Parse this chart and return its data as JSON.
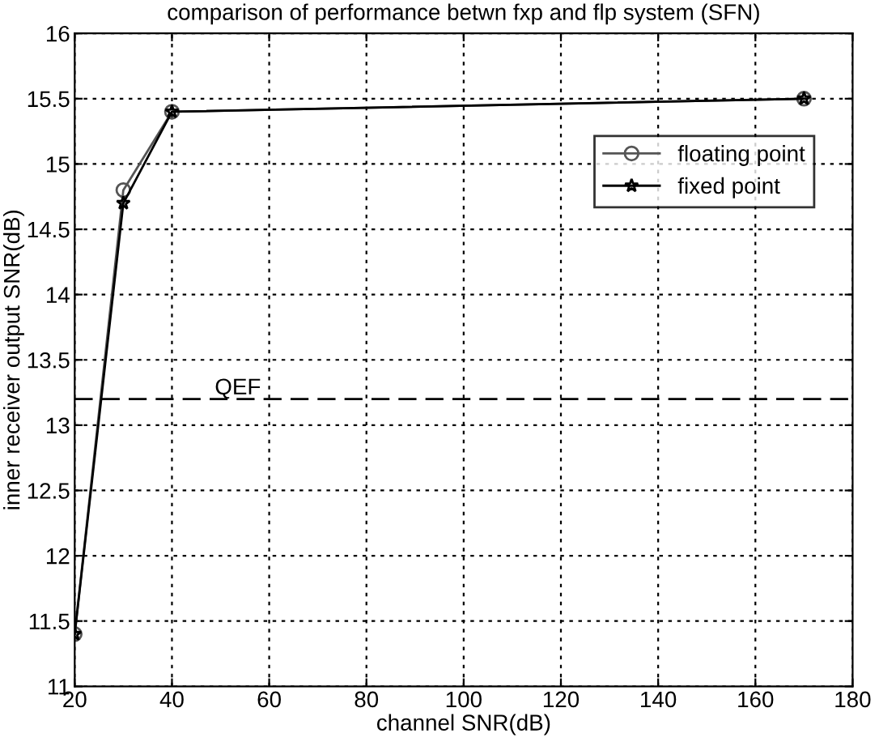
{
  "chart_data": {
    "type": "line",
    "title": "comparison of performance betwn fxp and flp system (SFN)",
    "xlabel": "channel SNR(dB)",
    "ylabel": "inner receiver output SNR(dB)",
    "series": [
      {
        "name": "floating point",
        "color": "#555555",
        "marker": "circle",
        "x": [
          20,
          30,
          40,
          170
        ],
        "values": [
          11.4,
          14.8,
          15.4,
          15.5
        ]
      },
      {
        "name": "fixed point",
        "color": "#000000",
        "marker": "star",
        "x": [
          20,
          30,
          40,
          170
        ],
        "values": [
          11.4,
          14.7,
          15.4,
          15.5
        ]
      }
    ],
    "xlim": [
      20,
      180
    ],
    "xticks": [
      20,
      40,
      60,
      80,
      100,
      120,
      140,
      160,
      180
    ],
    "ylim": [
      11,
      16
    ],
    "yticks": [
      11,
      11.5,
      12,
      12.5,
      13,
      13.5,
      14,
      14.5,
      15,
      15.5,
      16
    ],
    "ref_lines": [
      {
        "axis": "y",
        "value": 13.2,
        "label": "QEF",
        "color": "#000000",
        "line_style": "dashed"
      }
    ],
    "grid": true,
    "legend": "top right",
    "line_style": "solid"
  }
}
